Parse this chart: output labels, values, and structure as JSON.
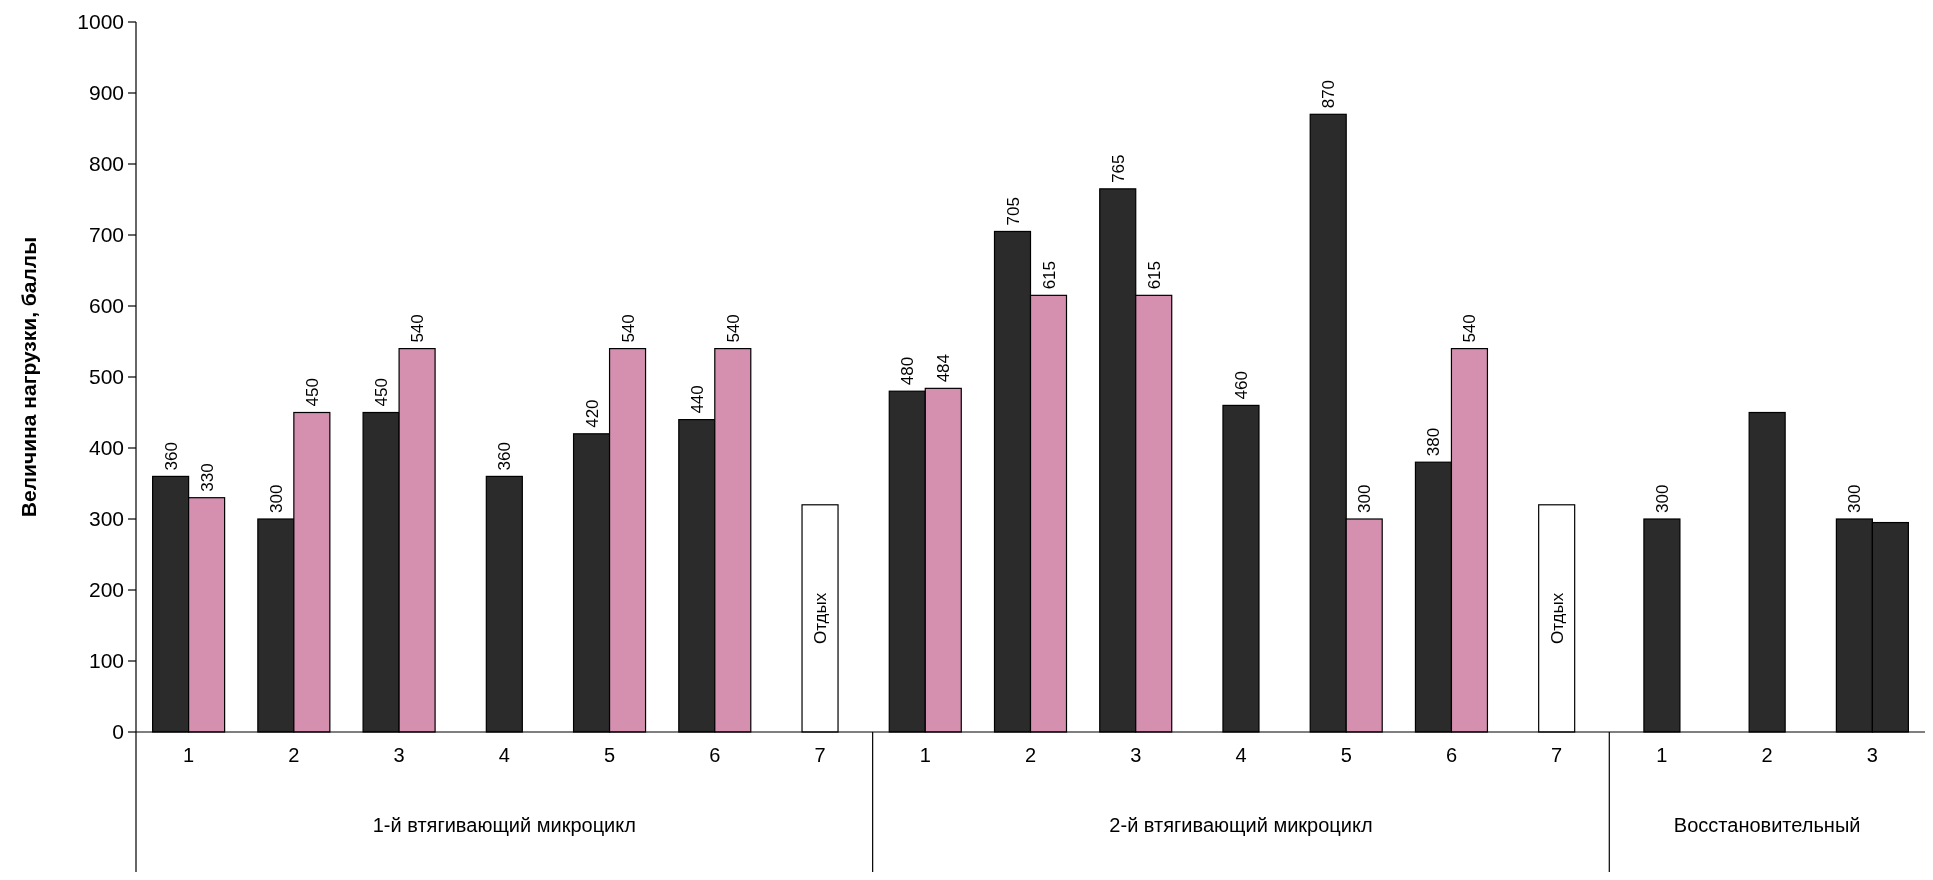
{
  "chart_data": {
    "type": "bar",
    "ylabel": "Величина нагрузки, баллы",
    "categories": [
      "1",
      "2",
      "3",
      "4",
      "5",
      "6",
      "7",
      "1",
      "2",
      "3",
      "4",
      "5",
      "6",
      "7",
      "1",
      "2",
      "3"
    ],
    "ylim": [
      0,
      1000
    ],
    "yticks": [
      0,
      100,
      200,
      300,
      400,
      500,
      600,
      700,
      800,
      900,
      1000
    ],
    "grid": false,
    "annotations": [
      "1-й втягивающий микроцикл",
      "2-й втягивающий микроцикл",
      "Восстановительный"
    ],
    "series": [
      {
        "color": "#2b2b2b",
        "values": [
          360,
          300,
          450,
          360,
          420,
          440,
          null,
          480,
          705,
          765,
          460,
          870,
          380,
          null,
          300,
          450,
          300
        ],
        "value_labels": [
          "360",
          "300",
          "450",
          "360",
          "420",
          "440",
          null,
          "480",
          "705",
          "765",
          "460",
          "870",
          "380",
          null,
          "300",
          null,
          "300"
        ]
      },
      {
        "color": "#d590b0",
        "colors": [
          null,
          null,
          null,
          null,
          null,
          null,
          null,
          null,
          null,
          null,
          null,
          null,
          null,
          null,
          null,
          null,
          "#2b2b2b"
        ],
        "values": [
          330,
          450,
          540,
          null,
          540,
          540,
          null,
          484,
          615,
          615,
          null,
          300,
          540,
          null,
          null,
          null,
          295
        ],
        "value_labels": [
          "330",
          "450",
          "540",
          null,
          "540",
          "540",
          null,
          "484",
          "615",
          "615",
          null,
          "300",
          "540",
          null,
          null,
          null,
          null
        ]
      },
      {
        "color": "#ffffff",
        "values": [
          null,
          null,
          null,
          null,
          null,
          null,
          320,
          null,
          null,
          null,
          null,
          null,
          null,
          320,
          null,
          null,
          null
        ],
        "value_labels": [
          null,
          null,
          null,
          null,
          null,
          null,
          "Отдых",
          null,
          null,
          null,
          null,
          null,
          null,
          "Отдых",
          null,
          null,
          null
        ]
      }
    ]
  }
}
